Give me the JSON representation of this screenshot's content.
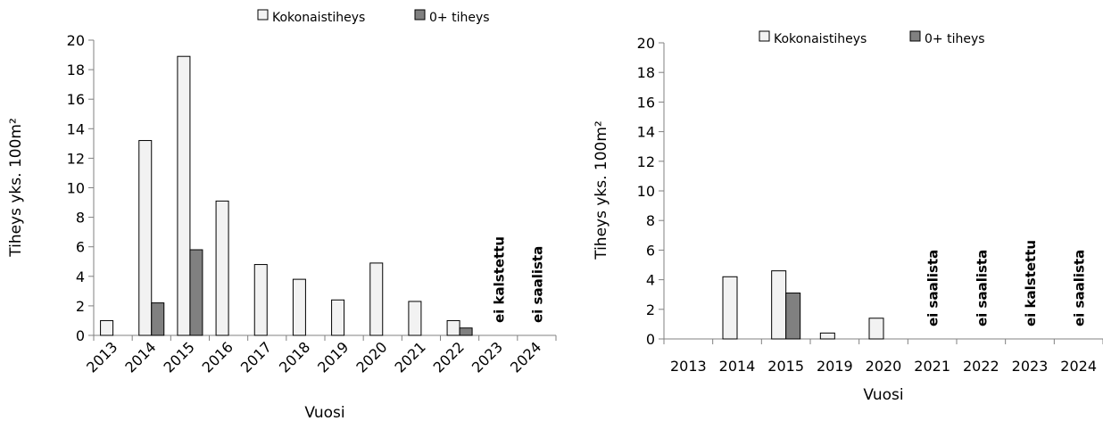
{
  "chart_data": [
    {
      "type": "bar",
      "xlabel": "Vuosi",
      "ylabel": "Tiheys yks. 100m²",
      "ylim": [
        0,
        20
      ],
      "yticks": [
        "0",
        "2",
        "4",
        "6",
        "8",
        "10",
        "12",
        "14",
        "16",
        "18",
        "20"
      ],
      "categories": [
        "2013",
        "2014",
        "2015",
        "2016",
        "2017",
        "2018",
        "2019",
        "2020",
        "2021",
        "2022",
        "2023",
        "2024"
      ],
      "series": [
        {
          "name": "Kokonaistiheys",
          "color": "#f2f2f2",
          "values": [
            1.0,
            13.2,
            18.9,
            9.1,
            4.8,
            3.8,
            2.4,
            4.9,
            2.3,
            1.0,
            null,
            null
          ]
        },
        {
          "name": "0+ tiheys",
          "color": "#808080",
          "values": [
            0,
            2.2,
            5.8,
            0,
            0,
            0,
            0,
            0,
            0,
            0.5,
            null,
            null
          ]
        }
      ],
      "annotations": [
        {
          "category": "2023",
          "text": "ei kalstettu"
        },
        {
          "category": "2024",
          "text": "ei saalista"
        }
      ],
      "x_tick_rotation": "rotated",
      "legend_position": "top"
    },
    {
      "type": "bar",
      "xlabel": "Vuosi",
      "ylabel": "Tiheys yks. 100m²",
      "ylim": [
        0,
        20
      ],
      "yticks": [
        "0",
        "2",
        "4",
        "6",
        "8",
        "10",
        "12",
        "14",
        "16",
        "18",
        "20"
      ],
      "categories": [
        "2013",
        "2014",
        "2015",
        "2019",
        "2020",
        "2021",
        "2022",
        "2023",
        "2024"
      ],
      "series": [
        {
          "name": "Kokonaistiheys",
          "color": "#f2f2f2",
          "values": [
            0,
            4.2,
            4.6,
            0.4,
            1.4,
            null,
            null,
            null,
            null
          ]
        },
        {
          "name": "0+ tiheys",
          "color": "#808080",
          "values": [
            0,
            0,
            3.1,
            0,
            0,
            null,
            null,
            null,
            null
          ]
        }
      ],
      "annotations": [
        {
          "category": "2021",
          "text": "ei saalista"
        },
        {
          "category": "2022",
          "text": "ei saalista"
        },
        {
          "category": "2023",
          "text": "ei kalstettu"
        },
        {
          "category": "2024",
          "text": "ei saalista"
        }
      ],
      "x_tick_rotation": "horizontal",
      "legend_position": "top"
    }
  ]
}
